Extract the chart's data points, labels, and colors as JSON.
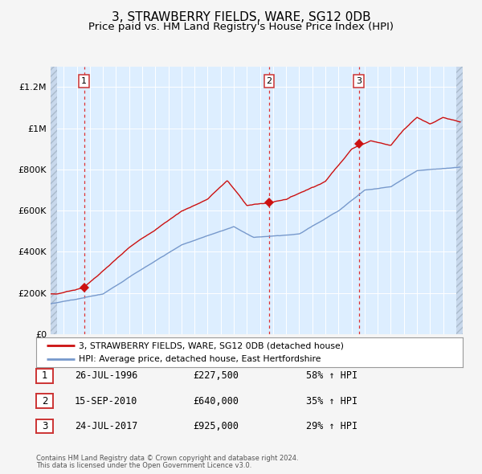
{
  "title": "3, STRAWBERRY FIELDS, WARE, SG12 0DB",
  "subtitle": "Price paid vs. HM Land Registry's House Price Index (HPI)",
  "title_fontsize": 11,
  "subtitle_fontsize": 9.5,
  "bg_color": "#f5f5f5",
  "plot_bg_color": "#ddeeff",
  "grid_color": "#ffffff",
  "red_line_color": "#cc1111",
  "blue_line_color": "#7799cc",
  "sale_marker_color": "#cc1111",
  "dashed_line_color": "#dd3333",
  "xmin": 1994.0,
  "xmax": 2025.5,
  "ymin": 0,
  "ymax": 1300000,
  "yticks": [
    0,
    200000,
    400000,
    600000,
    800000,
    1000000,
    1200000
  ],
  "ytick_labels": [
    "£0",
    "£200K",
    "£400K",
    "£600K",
    "£800K",
    "£1M",
    "£1.2M"
  ],
  "xticks": [
    1994,
    1995,
    1996,
    1997,
    1998,
    1999,
    2000,
    2001,
    2002,
    2003,
    2004,
    2005,
    2006,
    2007,
    2008,
    2009,
    2010,
    2011,
    2012,
    2013,
    2014,
    2015,
    2016,
    2017,
    2018,
    2019,
    2020,
    2021,
    2022,
    2023,
    2024,
    2025
  ],
  "sale1_x": 1996.55,
  "sale1_y": 227500,
  "sale2_x": 2010.71,
  "sale2_y": 640000,
  "sale3_x": 2017.55,
  "sale3_y": 925000,
  "legend_label_red": "3, STRAWBERRY FIELDS, WARE, SG12 0DB (detached house)",
  "legend_label_blue": "HPI: Average price, detached house, East Hertfordshire",
  "table_rows": [
    {
      "num": "1",
      "date": "26-JUL-1996",
      "price": "£227,500",
      "pct": "58% ↑ HPI"
    },
    {
      "num": "2",
      "date": "15-SEP-2010",
      "price": "£640,000",
      "pct": "35% ↑ HPI"
    },
    {
      "num": "3",
      "date": "24-JUL-2017",
      "price": "£925,000",
      "pct": "29% ↑ HPI"
    }
  ],
  "footnote1": "Contains HM Land Registry data © Crown copyright and database right 2024.",
  "footnote2": "This data is licensed under the Open Government Licence v3.0."
}
